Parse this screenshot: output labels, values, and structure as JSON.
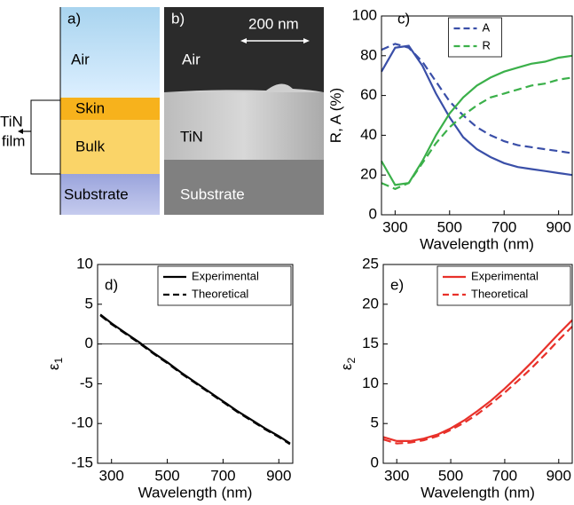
{
  "panel_a": {
    "label": "a)",
    "layers": [
      "Air",
      "Skin",
      "Bulk",
      "Substrate"
    ],
    "film_label": [
      "TiN",
      "film"
    ]
  },
  "panel_b": {
    "label": "b)",
    "scale_bar": "200 nm",
    "regions": [
      "Air",
      "TiN",
      "Substrate"
    ]
  },
  "chart_data": [
    {
      "type": "line",
      "label": "c)",
      "xlabel": "Wavelength (nm)",
      "ylabel": "R, A (%)",
      "x": [
        250,
        300,
        350,
        400,
        450,
        500,
        550,
        600,
        650,
        700,
        750,
        800,
        850,
        900,
        950
      ],
      "xlim": [
        250,
        950
      ],
      "xticks": [
        300,
        500,
        700,
        900
      ],
      "ylim": [
        0,
        100
      ],
      "yticks": [
        0,
        20,
        40,
        60,
        80,
        100
      ],
      "legend": "top",
      "series": [
        {
          "name": "A",
          "color": "#3a4fa8",
          "values": [
            72,
            84,
            85,
            75,
            61,
            49,
            39,
            33,
            29,
            26,
            24,
            23,
            22,
            21,
            20
          ],
          "dashed_values": [
            83,
            86,
            84,
            77,
            67,
            57,
            50,
            44,
            40,
            37,
            35,
            34,
            33,
            32,
            31
          ]
        },
        {
          "name": "R",
          "color": "#3bb04a",
          "values": [
            27,
            15,
            16,
            27,
            40,
            51,
            59,
            65,
            69,
            72,
            74,
            76,
            77,
            79,
            80
          ],
          "dashed_values": [
            16,
            13,
            16,
            26,
            36,
            44,
            50,
            55,
            59,
            61,
            63,
            65,
            66,
            68,
            69
          ]
        }
      ]
    },
    {
      "type": "line",
      "label": "d)",
      "xlabel": "Wavelength (nm)",
      "ylabel": "ε",
      "ylabel_subscript": "1",
      "x": [
        260,
        300,
        350,
        400,
        450,
        500,
        550,
        600,
        650,
        700,
        750,
        800,
        850,
        900,
        940
      ],
      "xlim": [
        250,
        950
      ],
      "xticks": [
        300,
        500,
        700,
        900
      ],
      "ylim": [
        -15,
        10
      ],
      "yticks": [
        -15,
        -10,
        -5,
        0,
        5,
        10
      ],
      "hline": 0,
      "legend": "upper right",
      "series": [
        {
          "name": "Experimental",
          "color": "#000000",
          "dashed": false,
          "values": [
            3.7,
            2.6,
            1.4,
            0.2,
            -1.1,
            -2.3,
            -3.6,
            -4.8,
            -6.0,
            -7.2,
            -8.4,
            -9.5,
            -10.6,
            -11.6,
            -12.5
          ]
        },
        {
          "name": "Theoretical",
          "color": "#000000",
          "dashed": true,
          "values": [
            3.6,
            2.5,
            1.3,
            0.1,
            -1.2,
            -2.4,
            -3.7,
            -4.9,
            -6.1,
            -7.3,
            -8.5,
            -9.6,
            -10.7,
            -11.7,
            -12.6
          ]
        }
      ]
    },
    {
      "type": "line",
      "label": "e)",
      "xlabel": "Wavelength (nm)",
      "ylabel": "ε",
      "ylabel_subscript": "2",
      "x": [
        250,
        300,
        350,
        400,
        450,
        500,
        550,
        600,
        650,
        700,
        750,
        800,
        850,
        900,
        950
      ],
      "xlim": [
        250,
        950
      ],
      "xticks": [
        300,
        500,
        700,
        900
      ],
      "ylim": [
        0,
        25
      ],
      "yticks": [
        0,
        5,
        10,
        15,
        20,
        25
      ],
      "legend": "upper right",
      "series": [
        {
          "name": "Experimental",
          "color": "#e8312a",
          "dashed": false,
          "values": [
            3.3,
            2.8,
            2.8,
            3.1,
            3.6,
            4.4,
            5.4,
            6.6,
            7.9,
            9.4,
            11.0,
            12.7,
            14.5,
            16.3,
            18.0
          ]
        },
        {
          "name": "Theoretical",
          "color": "#e8312a",
          "dashed": true,
          "values": [
            3.0,
            2.5,
            2.6,
            2.9,
            3.4,
            4.2,
            5.1,
            6.2,
            7.5,
            8.9,
            10.4,
            12.0,
            13.7,
            15.5,
            17.2
          ]
        }
      ]
    }
  ]
}
